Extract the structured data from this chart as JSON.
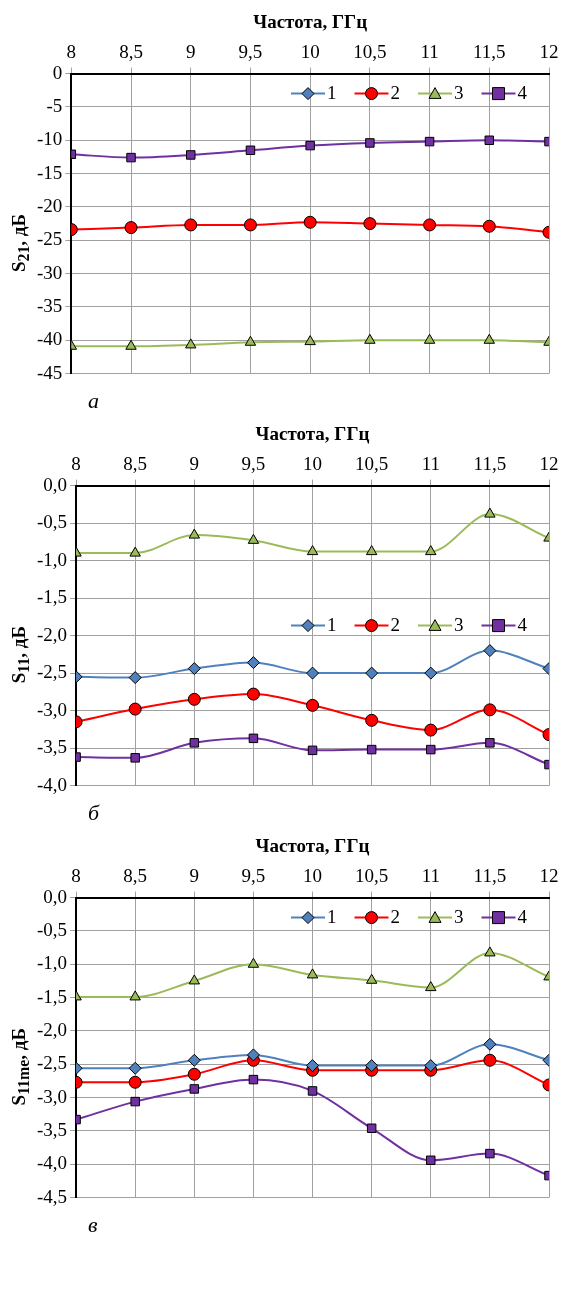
{
  "chart_data": [
    {
      "type": "line",
      "xlabel": "Частота, ГГц",
      "ylabel": "S$_{21}$, дБ",
      "annotations": [
        "а"
      ],
      "x": [
        8,
        8.5,
        9,
        9.5,
        10,
        10.5,
        11,
        11.5,
        12
      ],
      "xlim": [
        8,
        12
      ],
      "xticks": [
        8,
        {
          "value": 8.5,
          "label": "8,5"
        },
        9,
        {
          "value": 9.5,
          "label": "9,5"
        },
        10,
        {
          "value": 10.5,
          "label": "10,5"
        },
        11,
        {
          "value": 11.5,
          "label": "11,5"
        },
        12
      ],
      "ylim": [
        -45,
        0
      ],
      "yticks": [
        -45,
        -40,
        -35,
        -30,
        -25,
        -20,
        -15,
        -10,
        -5,
        0
      ],
      "grid": true,
      "legend": "top right",
      "series": [
        {
          "name": "1",
          "color": "#4f81bd",
          "marker": "diamond",
          "values": [
            null,
            null,
            null,
            null,
            null,
            null,
            null,
            null,
            null
          ]
        },
        {
          "name": "2",
          "color": "#ff0000",
          "marker": "circle",
          "values": [
            -23.4,
            -23.1,
            -22.7,
            -22.7,
            -22.3,
            -22.5,
            -22.7,
            -22.9,
            -23.8
          ]
        },
        {
          "name": "3",
          "color": "#9bbb59",
          "marker": "triangle",
          "values": [
            -40.9,
            -40.9,
            -40.7,
            -40.3,
            -40.2,
            -40.0,
            -40.0,
            -40.0,
            -40.3
          ]
        },
        {
          "name": "4",
          "color": "#7030a0",
          "marker": "square",
          "values": [
            -12.1,
            -12.6,
            -12.2,
            -11.5,
            -10.8,
            -10.4,
            -10.2,
            -10.0,
            -10.2
          ]
        }
      ]
    },
    {
      "type": "line",
      "xlabel": "Частота, ГГц",
      "ylabel": "S$_{11}$, дБ",
      "annotations": [
        "б"
      ],
      "x": [
        8,
        8.5,
        9,
        9.5,
        10,
        10.5,
        11,
        11.5,
        12
      ],
      "xlim": [
        8,
        12
      ],
      "xticks": [
        8,
        {
          "value": 8.5,
          "label": "8,5"
        },
        9,
        {
          "value": 9.5,
          "label": "9,5"
        },
        10,
        {
          "value": 10.5,
          "label": "10,5"
        },
        11,
        {
          "value": 11.5,
          "label": "11,5"
        },
        12
      ],
      "ylim": [
        -4,
        0
      ],
      "yticks": [
        {
          "value": -4,
          "label": "-4,0"
        },
        {
          "value": -3.5,
          "label": "-3,5"
        },
        {
          "value": -3,
          "label": "-3,0"
        },
        {
          "value": -2.5,
          "label": "-2,5"
        },
        {
          "value": -2,
          "label": "-2,0"
        },
        {
          "value": -1.5,
          "label": "-1,5"
        },
        {
          "value": -1,
          "label": "-1,0"
        },
        {
          "value": -0.5,
          "label": "-0,5"
        },
        {
          "value": 0,
          "label": "0,0"
        }
      ],
      "grid": true,
      "legend": "right",
      "series": [
        {
          "name": "1",
          "color": "#4f81bd",
          "marker": "diamond",
          "values": [
            -2.55,
            -2.56,
            -2.44,
            -2.36,
            -2.5,
            -2.5,
            -2.5,
            -2.2,
            -2.44
          ]
        },
        {
          "name": "2",
          "color": "#ff0000",
          "marker": "circle",
          "values": [
            -3.15,
            -2.98,
            -2.85,
            -2.78,
            -2.93,
            -3.13,
            -3.26,
            -2.99,
            -3.32
          ]
        },
        {
          "name": "3",
          "color": "#9bbb59",
          "marker": "triangle",
          "values": [
            -0.9,
            -0.9,
            -0.66,
            -0.73,
            -0.88,
            -0.88,
            -0.88,
            -0.38,
            -0.7
          ]
        },
        {
          "name": "4",
          "color": "#7030a0",
          "marker": "square",
          "values": [
            -3.62,
            -3.63,
            -3.43,
            -3.37,
            -3.53,
            -3.52,
            -3.52,
            -3.43,
            -3.72
          ]
        }
      ]
    },
    {
      "type": "line",
      "xlabel": "Частота, ГГц",
      "ylabel": "S$_{11me}$, дБ",
      "annotations": [
        "в"
      ],
      "x": [
        8,
        8.5,
        9,
        9.5,
        10,
        10.5,
        11,
        11.5,
        12
      ],
      "xlim": [
        8,
        12
      ],
      "xticks": [
        8,
        {
          "value": 8.5,
          "label": "8,5"
        },
        9,
        {
          "value": 9.5,
          "label": "9,5"
        },
        10,
        {
          "value": 10.5,
          "label": "10,5"
        },
        11,
        {
          "value": 11.5,
          "label": "11,5"
        },
        12
      ],
      "ylim": [
        -4.5,
        0
      ],
      "yticks": [
        {
          "value": -4.5,
          "label": "-4,5"
        },
        {
          "value": -4,
          "label": "-4,0"
        },
        {
          "value": -3.5,
          "label": "-3,5"
        },
        {
          "value": -3,
          "label": "-3,0"
        },
        {
          "value": -2.5,
          "label": "-2,5"
        },
        {
          "value": -2,
          "label": "-2,0"
        },
        {
          "value": -1.5,
          "label": "-1,5"
        },
        {
          "value": -1,
          "label": "-1,0"
        },
        {
          "value": -0.5,
          "label": "-0,5"
        },
        {
          "value": 0,
          "label": "0,0"
        }
      ],
      "grid": true,
      "legend": "top right",
      "series": [
        {
          "name": "1",
          "color": "#4f81bd",
          "marker": "diamond",
          "values": [
            -2.56,
            -2.56,
            -2.44,
            -2.36,
            -2.52,
            -2.52,
            -2.52,
            -2.2,
            -2.44
          ]
        },
        {
          "name": "2",
          "color": "#ff0000",
          "marker": "circle",
          "values": [
            -2.77,
            -2.77,
            -2.65,
            -2.44,
            -2.59,
            -2.59,
            -2.59,
            -2.44,
            -2.81
          ]
        },
        {
          "name": "3",
          "color": "#9bbb59",
          "marker": "triangle",
          "values": [
            -1.49,
            -1.49,
            -1.25,
            -1.0,
            -1.16,
            -1.24,
            -1.35,
            -0.83,
            -1.19
          ]
        },
        {
          "name": "4",
          "color": "#7030a0",
          "marker": "square",
          "values": [
            -3.33,
            -3.06,
            -2.87,
            -2.73,
            -2.9,
            -3.46,
            -3.94,
            -3.84,
            -4.17
          ]
        }
      ]
    }
  ]
}
